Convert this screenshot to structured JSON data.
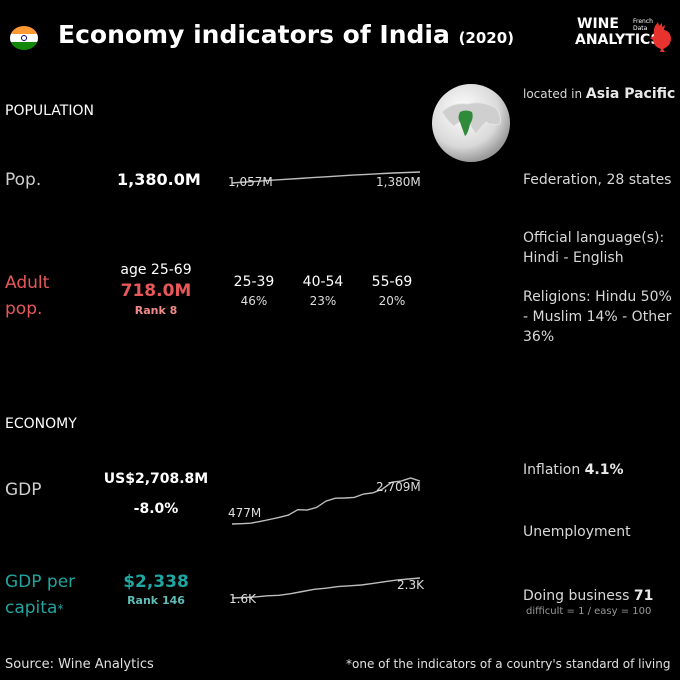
{
  "header": {
    "title": "Economy indicators of India",
    "year": "(2020)",
    "flag_colors": [
      "#ff9933",
      "#ffffff",
      "#138808"
    ],
    "logo": {
      "line1": "WINE",
      "line2": "ANALYTICS",
      "tag1": "French",
      "tag2": "Data"
    }
  },
  "population": {
    "section_label": "POPULATION",
    "pop_label": "Pop.",
    "pop_value": "1,380.0M",
    "spark_start": "1,057M",
    "spark_end": "1,380M",
    "adult_label_1": "Adult",
    "adult_label_2": "pop.",
    "age_range": "age 25-69",
    "adult_value": "718.0M",
    "adult_rank": "Rank 8",
    "age_groups": [
      {
        "range": "25-39",
        "pct": "46%"
      },
      {
        "range": "40-54",
        "pct": "23%"
      },
      {
        "range": "55-69",
        "pct": "20%"
      }
    ]
  },
  "country_info": {
    "located_prefix": "located in",
    "region": "Asia Pacific",
    "government": "Federation, 28 states",
    "languages_label": "Official language(s):",
    "languages": "Hindi - English",
    "religions": "Religions: Hindu 50% - Muslim 14% - Other 36%"
  },
  "economy": {
    "section_label": "ECONOMY",
    "gdp_label": "GDP",
    "gdp_value": "US$2,708.8M",
    "gdp_growth": "-8.0%",
    "gdp_spark_start": "477M",
    "gdp_spark_end": "2,709M",
    "gdp_pc_label_1": "GDP per",
    "gdp_pc_label_2": "capita",
    "gdp_pc_star": "*",
    "gdp_pc_value": "$2,338",
    "gdp_pc_rank": "Rank 146",
    "gdp_pc_spark_start": "1.6K",
    "gdp_pc_spark_end": "2.3K",
    "inflation_label": "Inflation",
    "inflation_value": "4.1%",
    "unemployment_label": "Unemployment",
    "doing_business_label": "Doing business",
    "doing_business_value": "71",
    "doing_business_note": "difficult = 1 / easy = 100"
  },
  "footer": {
    "source": "Source: Wine  Analytics",
    "note": "*one of the indicators of a country's standard of living"
  },
  "sparklines": {
    "pop_series": [
      1057,
      1085,
      1110,
      1140,
      1165,
      1190,
      1215,
      1240,
      1265,
      1290,
      1310,
      1330,
      1350,
      1366,
      1380
    ],
    "gdp_series": [
      477,
      495,
      520,
      610,
      710,
      820,
      940,
      1220,
      1200,
      1340,
      1670,
      1820,
      1830,
      1860,
      2040,
      2100,
      2290,
      2650,
      2710,
      2870,
      2709
    ],
    "gdp_pc_series": [
      1600,
      1620,
      1640,
      1680,
      1700,
      1760,
      1840,
      1920,
      1960,
      2020,
      2050,
      2080,
      2140,
      2200,
      2260,
      2300,
      2338
    ]
  }
}
